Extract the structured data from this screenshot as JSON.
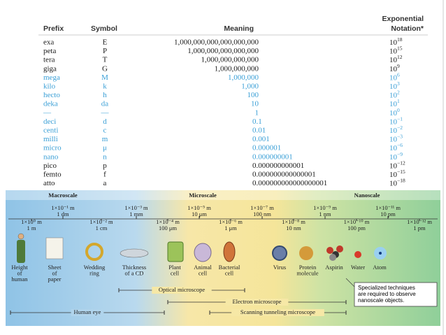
{
  "table": {
    "headers": {
      "prefix": "Prefix",
      "symbol": "Symbol",
      "meaning": "Meaning",
      "notation": [
        "Exponential",
        "Notation*"
      ]
    },
    "rows": [
      {
        "prefix": "exa",
        "symbol": "E",
        "meaning": "1,000,000,000,000,000,000",
        "base": "10",
        "power": "18",
        "color": "#1a1a1a"
      },
      {
        "prefix": "peta",
        "symbol": "P",
        "meaning": "1,000,000,000,000,000",
        "base": "10",
        "power": "15",
        "color": "#1a1a1a"
      },
      {
        "prefix": "tera",
        "symbol": "T",
        "meaning": "1,000,000,000,000",
        "base": "10",
        "power": "12",
        "color": "#1a1a1a"
      },
      {
        "prefix": "giga",
        "symbol": "G",
        "meaning": "1,000,000,000",
        "base": "10",
        "power": "9",
        "color": "#1a1a1a"
      },
      {
        "prefix": "mega",
        "symbol": "M",
        "meaning": "1,000,000",
        "base": "10",
        "power": "6",
        "color": "#3a9fd6"
      },
      {
        "prefix": "kilo",
        "symbol": "k",
        "meaning": "1,000",
        "base": "10",
        "power": "3",
        "color": "#3a9fd6"
      },
      {
        "prefix": "hecto",
        "symbol": "h",
        "meaning": "100",
        "base": "10",
        "power": "2",
        "color": "#3a9fd6"
      },
      {
        "prefix": "deka",
        "symbol": "da",
        "meaning": "10",
        "base": "10",
        "power": "1",
        "color": "#3a9fd6"
      },
      {
        "prefix": "—",
        "symbol": "—",
        "meaning": "1",
        "base": "10",
        "power": "0",
        "color": "#3a9fd6"
      },
      {
        "prefix": "deci",
        "symbol": "d",
        "meaning": "0.1",
        "base": "10",
        "power": "−1",
        "color": "#3a9fd6"
      },
      {
        "prefix": "centi",
        "symbol": "c",
        "meaning": "0.01",
        "base": "10",
        "power": "−2",
        "color": "#3a9fd6"
      },
      {
        "prefix": "milli",
        "symbol": "m",
        "meaning": "0.001",
        "base": "10",
        "power": "−3",
        "color": "#3a9fd6"
      },
      {
        "prefix": "micro",
        "symbol": "μ",
        "meaning": "0.000001",
        "base": "10",
        "power": "−6",
        "color": "#3a9fd6"
      },
      {
        "prefix": "nano",
        "symbol": "n",
        "meaning": "0.000000001",
        "base": "10",
        "power": "−9",
        "color": "#3a9fd6"
      },
      {
        "prefix": "pico",
        "symbol": "p",
        "meaning": "0.000000000001",
        "base": "10",
        "power": "−12",
        "color": "#1a1a1a"
      },
      {
        "prefix": "femto",
        "symbol": "f",
        "meaning": "0.000000000000001",
        "base": "10",
        "power": "−15",
        "color": "#1a1a1a"
      },
      {
        "prefix": "atto",
        "symbol": "a",
        "meaning": "0.000000000000000001",
        "base": "10",
        "power": "−18",
        "color": "#1a1a1a"
      }
    ]
  },
  "diagram": {
    "regions": [
      "Macroscale",
      "Microscale",
      "Nanoscale"
    ],
    "scale_top": [
      [
        "1×10⁻¹ m",
        "1 dm"
      ],
      [
        "1×10⁻³ m",
        "1 mm"
      ],
      [
        "1×10⁻⁵ m",
        "10 μm"
      ],
      [
        "1×10⁻⁷ m",
        "100 nm"
      ],
      [
        "1×10⁻⁹ m",
        "1 nm"
      ],
      [
        "1×10⁻¹¹ m",
        "10 pm"
      ]
    ],
    "scale_bottom": [
      [
        "1×10⁰ m",
        "1 m"
      ],
      [
        "1×10⁻² m",
        "1 cm"
      ],
      [
        "1×10⁻⁴ m",
        "100 μm"
      ],
      [
        "1×10⁻⁶ m",
        "1 μm"
      ],
      [
        "1×10⁻⁸ m",
        "10 nm"
      ],
      [
        "1×10⁻¹⁰ m",
        "100 pm"
      ],
      [
        "1×10⁻¹² m",
        "1 pm"
      ]
    ],
    "objects": [
      [
        "Height",
        "of",
        "human"
      ],
      [
        "Sheet",
        "of",
        "paper"
      ],
      [
        "Wedding",
        "ring"
      ],
      [
        "Thickness",
        "of a CD"
      ],
      [
        "Plant",
        "cell"
      ],
      [
        "Animal",
        "cell"
      ],
      [
        "Bacterial",
        "cell"
      ],
      [
        "Virus"
      ],
      [
        "Protein",
        "molecule"
      ],
      [
        "Aspirin"
      ],
      [
        "Water"
      ],
      [
        "Atom"
      ]
    ],
    "instruments": [
      "Optical microscope",
      "Electron microscope",
      "Human eye",
      "Scanning tunneling microscope"
    ],
    "note": [
      "Specialized techniques",
      "are required to observe",
      "nanoscale objects."
    ]
  }
}
